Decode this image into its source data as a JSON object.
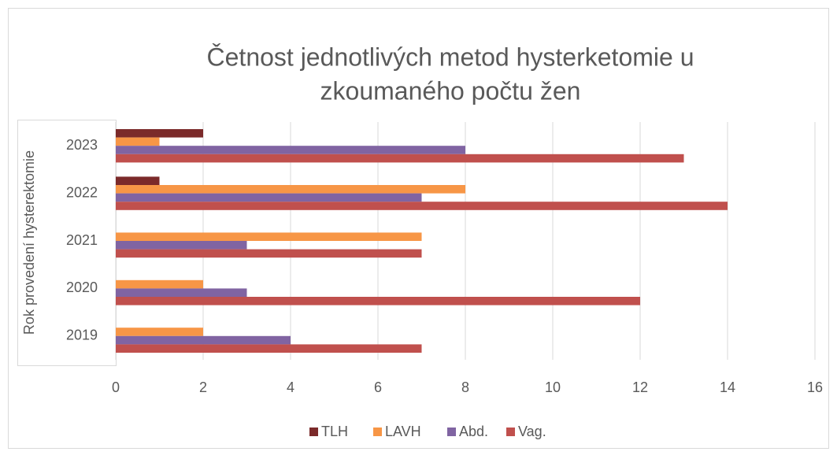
{
  "chart_data": {
    "type": "hbar",
    "title": [
      "Četnost jednotlivých metod hysterketomie u",
      "zkoumaného počtu žen"
    ],
    "y_axis_label": "Rok provedení hysterektomie",
    "categories": [
      "2019",
      "2020",
      "2021",
      "2022",
      "2023"
    ],
    "series": [
      {
        "name": "TLH",
        "color": "#7b2a2a",
        "values": [
          0,
          0,
          0,
          1,
          2
        ]
      },
      {
        "name": "LAVH",
        "color": "#f79646",
        "values": [
          2,
          2,
          7,
          8,
          1
        ]
      },
      {
        "name": "Abd.",
        "color": "#8064a2",
        "values": [
          4,
          3,
          3,
          7,
          8
        ]
      },
      {
        "name": "Vag.",
        "color": "#c0504d",
        "values": [
          7,
          12,
          7,
          14,
          13
        ]
      }
    ],
    "xlim": [
      0,
      16
    ],
    "xticks": [
      0,
      2,
      4,
      6,
      8,
      10,
      12,
      14,
      16
    ],
    "grid": true,
    "legend": "bottom"
  }
}
